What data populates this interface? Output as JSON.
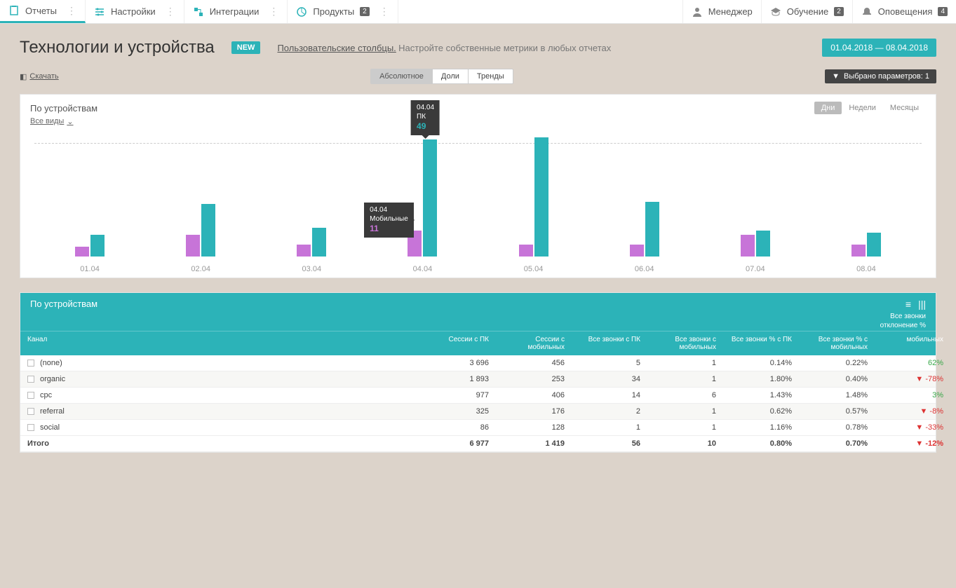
{
  "nav": {
    "left": [
      {
        "label": "Отчеты",
        "icon": "reports-icon",
        "active": true
      },
      {
        "label": "Настройки",
        "icon": "settings-icon",
        "active": false
      },
      {
        "label": "Интеграции",
        "icon": "integrations-icon",
        "active": false
      },
      {
        "label": "Продукты",
        "icon": "products-icon",
        "active": false,
        "badge": "2"
      }
    ],
    "right": [
      {
        "label": "Менеджер",
        "icon": "manager-icon"
      },
      {
        "label": "Обучение",
        "icon": "education-icon",
        "badge": "2"
      },
      {
        "label": "Оповещения",
        "icon": "bell-icon",
        "badge": "4"
      }
    ]
  },
  "header": {
    "title": "Технологии и устройства",
    "new_tag": "NEW",
    "promo_link": "Пользовательские столбцы.",
    "promo_text": "Настройте собственные метрики в любых отчетах",
    "date_range": "01.04.2018  —  08.04.2018",
    "download": "Скачать",
    "params_chip": "Выбрано параметров: 1"
  },
  "view_tabs": {
    "items": [
      "Абсолютное",
      "Доли",
      "Тренды"
    ],
    "active_index": 0
  },
  "chart": {
    "type": "bar",
    "title": "По устройствам",
    "all_views": "Все виды",
    "period_tabs": {
      "items": [
        "Дни",
        "Недели",
        "Месяцы"
      ],
      "active_index": 0
    },
    "categories": [
      "01.04",
      "02.04",
      "03.04",
      "04.04",
      "05.04",
      "06.04",
      "07.04",
      "08.04"
    ],
    "series": [
      {
        "name": "Мобильные",
        "color": "#c774d8",
        "values": [
          4,
          9,
          5,
          11,
          5,
          5,
          9,
          5
        ]
      },
      {
        "name": "ПК",
        "color": "#2cb3b8",
        "values": [
          9,
          22,
          12,
          49,
          50,
          23,
          11,
          10
        ]
      }
    ],
    "ylim": [
      0,
      50
    ],
    "grid_levels": [
      50
    ],
    "tooltip_pc": {
      "date": "04.04",
      "label": "ПК",
      "value": "49"
    },
    "tooltip_mobile": {
      "date": "04.04",
      "label": "Мобильные",
      "value": "11"
    },
    "background_color": "#ffffff",
    "grid_color": "#cccccc"
  },
  "table": {
    "title": "По устройствам",
    "corner_sub1": "Все звонки",
    "corner_sub2": "отклонение %",
    "columns": [
      "Канал",
      "Сессии с ПК",
      "Сессии с мобильных",
      "Все звонки с ПК",
      "Все звонки с мобильных",
      "Все звонки % с ПК",
      "Все звонки % с мобильных",
      "мобильных"
    ],
    "rows": [
      {
        "channel": "(none)",
        "c1": "3 696",
        "c2": "456",
        "c3": "5",
        "c4": "1",
        "c5": "0.14%",
        "c6": "0.22%",
        "delta": "62%",
        "dir": "up"
      },
      {
        "channel": "organic",
        "c1": "1 893",
        "c2": "253",
        "c3": "34",
        "c4": "1",
        "c5": "1.80%",
        "c6": "0.40%",
        "delta": "-78%",
        "dir": "down"
      },
      {
        "channel": "cpc",
        "c1": "977",
        "c2": "406",
        "c3": "14",
        "c4": "6",
        "c5": "1.43%",
        "c6": "1.48%",
        "delta": "3%",
        "dir": "up"
      },
      {
        "channel": "referral",
        "c1": "325",
        "c2": "176",
        "c3": "2",
        "c4": "1",
        "c5": "0.62%",
        "c6": "0.57%",
        "delta": "-8%",
        "dir": "down"
      },
      {
        "channel": "social",
        "c1": "86",
        "c2": "128",
        "c3": "1",
        "c4": "1",
        "c5": "1.16%",
        "c6": "0.78%",
        "delta": "-33%",
        "dir": "down"
      }
    ],
    "total": {
      "label": "Итого",
      "c1": "6 977",
      "c2": "1 419",
      "c3": "56",
      "c4": "10",
      "c5": "0.80%",
      "c6": "0.70%",
      "delta": "-12%",
      "dir": "down"
    },
    "header_bg": "#2cb3b8",
    "row_alt_bg": "#f7f7f5",
    "up_color": "#3aa84a",
    "down_color": "#d33333"
  }
}
